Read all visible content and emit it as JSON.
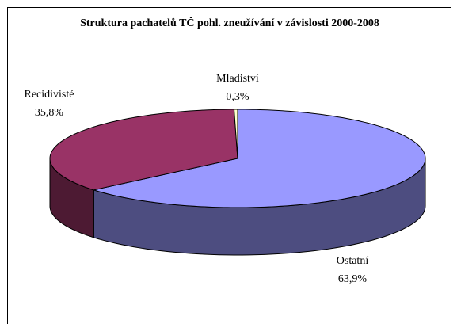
{
  "chart_data": {
    "type": "pie3d",
    "title": "Struktura pachatelů TČ pohl. zneužívání v závislosti 2000-2008",
    "categories": [
      "Ostatní",
      "Recidivisté",
      "Mladiství"
    ],
    "values": [
      63.9,
      35.8,
      0.3
    ],
    "value_labels": [
      "63,9%",
      "35,8%",
      "0,3%"
    ],
    "colors": [
      "#9999ff",
      "#993366",
      "#ffffcc"
    ]
  }
}
